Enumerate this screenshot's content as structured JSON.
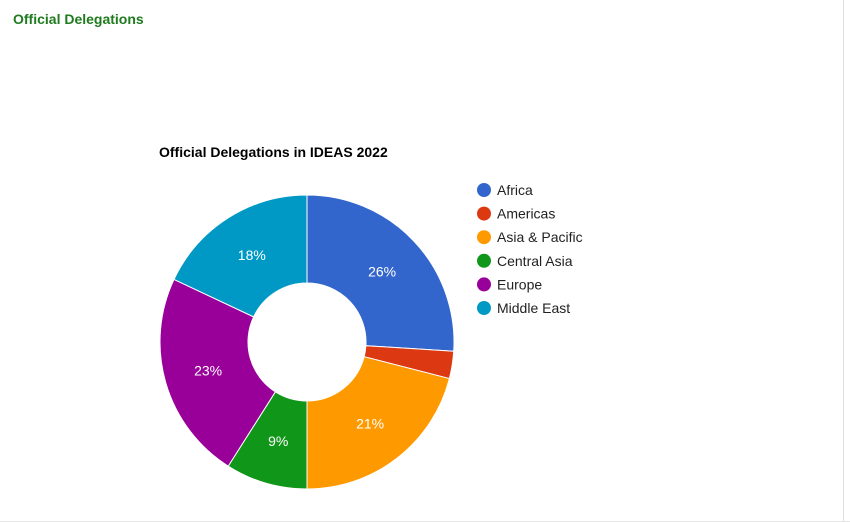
{
  "page": {
    "heading": "Official Delegations"
  },
  "chart_data": {
    "type": "pie",
    "donut": true,
    "title": "Official Delegations in IDEAS 2022",
    "legend_position": "right",
    "categories": [
      "Africa",
      "Americas",
      "Asia & Pacific",
      "Central Asia",
      "Europe",
      "Middle East"
    ],
    "values": [
      26,
      3,
      21,
      9,
      23,
      18
    ],
    "labels": [
      "26%",
      "",
      "21%",
      "9%",
      "23%",
      "18%"
    ],
    "colors": [
      "#3366cc",
      "#dc3912",
      "#ff9900",
      "#109618",
      "#990099",
      "#0099c6"
    ]
  }
}
